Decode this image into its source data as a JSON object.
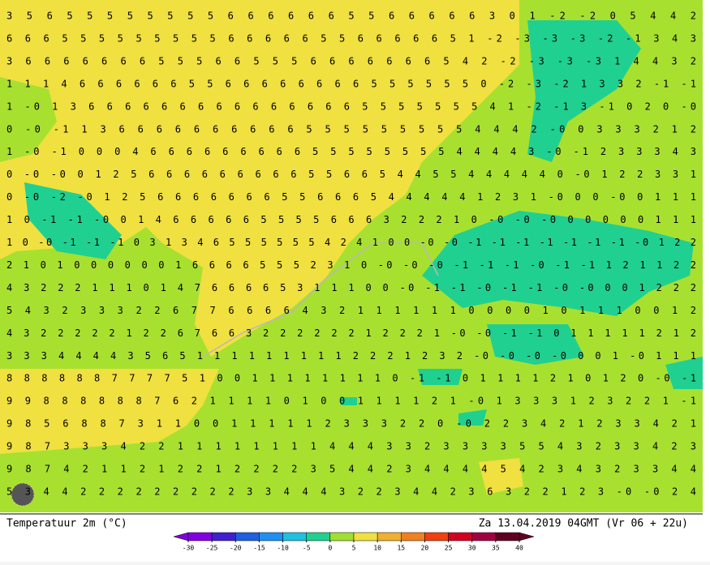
{
  "map": {
    "rows": [
      "3 5 6 5 5 5 5 5 5 5 5 6 6 6 6 6 6 5 5 6 6 6 6 6 3 0 1 -2 -2 0 5 4 4 2",
      "6 6 6 5 5 5 5 5 5 5 5 5 6 6 6 6 6 5 5 6 6 6 6 6 5 1 -2 -3 -3 -3 -2 -1 3 4 3",
      "3 6 6 6 6 6 6 6 5 5 5 6 6 5 5 5 6 6 6 6 6 6 6 5 4 2 -2 -3 -3 -3 1 4 4 3 2",
      "1 1 1 4 6 6 6 6 6 6 5 5 6 6 6 6 6 6 6 6 5 5 5 5 5 5 0 -2 -3 -2 1 3 3 2 -1 -1",
      "1 -0 1 3 6 6 6 6 6 6 6 6 6 6 6 6 6 6 6 5 5 5 5 5 5 5 4 1 -2 -1 3 -1 0 2 0 -0",
      "0 -0 -1 1 3 6 6 6 6 6 6 6 6 6 6 5 5 5 5 5 5 5 5 5 4 4 4 2 -0 0 3 3 3 2 1 2",
      "1 -0 -1 0 0 0 4 6 6 6 6 6 6 6 6 6 5 5 5 5 5 5 5 5 4 4 4 4 3 -0 -1 2 3 3 3 4 3",
      "0 -0 -0 0 1 2 5 6 6 6 6 6 6 6 6 6 5 5 6 6 5 4 4 5 5 4 4 4 4 4 0 -0 1 2 2 3 3 1",
      "0 -0 -2 -0 1 2 5 6 6 6 6 6 6 6 5 5 6 6 6 5 4 4 4 4 4 1 2 3 1 -0 0 0 -0 0 1 1 1",
      "1 0 -1 -1 -0 0 1 4 6 6 6 6 6 5 5 5 5 6 6 6 3 2 2 2 1 0 -0 -0 -0 0 0 0 0 0 1 1 1",
      "1 0 -0 -1 -1 -1 0 3 1 3 4 6 5 5 5 5 5 5 4 2 4 1 0 0 -0 -0 -1 -1 -1 -1 -1 -1 -1 -0 1 2 2",
      "2 1 0 1 0 0 0 0 0 0 1 6 6 6 6 5 5 5 2 3 1 0 -0 -0 -0 -1 -1 -1 -0 -1 -1 1 2 1 1 2 2",
      "4 3 2 2 2 1 1 1 0 1 4 7 6 6 6 6 5 3 1 1 1 0 0 -0 -1 -1 -0 -1 -1 -0 -0 0 0 1 2 2 2",
      "5 4 3 2 3 3 3 2 2 6 7 7 6 6 6 6 4 3 2 1 1 1 1 1 1 0 0 0 0 1 0 1 1 1 0 0 1 2",
      "4 3 2 2 2 2 2 1 2 2 6 7 6 6 3 2 2 2 2 2 2 1 2 2 2 1 -0 -0 -1 -1 0 1 1 1 1 1 2 1 2",
      "3 3 3 4 4 4 4 3 5 6 5 1 1 1 1 1 1 1 1 1 2 2 2 1 2 3 2 -0 -0 -0 -0 0 0 1 -0 1 1 1",
      "8 8 8 8 8 8 7 7 7 7 5 1 0 0 1 1 1 1 1 1 1 1 0 -1 -1 0 1 1 1 1 2 1 0 1 2 0 -0 -1",
      "9 9 8 8 8 8 8 8 7 6 2 1 1 1 1 0 1 0 0 1 1 1 1 2 1 -0 1 3 3 3 1 2 3 2 2 1 -1",
      "9 8 5 6 8 8 7 3 1 1 0 0 1 1 1 1 1 2 3 3 3 2 2 0 -0 2 2 3 4 2 1 2 3 3 4 2 1",
      "9 8 7 3 3 3 4 2 2 1 1 1 1 1 1 1 1 4 4 4 3 3 2 3 3 3 3 5 5 4 3 2 3 3 4 2 3",
      "9 8 7 4 2 1 1 2 1 2 2 1 2 2 2 2 3 5 4 4 2 3 4 4 4 4 5 4 2 3 4 3 2 3 3 4 4",
      "5 3 4 4 2 2 2 2 2 2 2 2 2 3 3 4 4 4 3 2 2 3 4 4 2 3 6 3 2 2 1 2 3 -0 -0 2 4"
    ]
  },
  "caption": {
    "left": "Temperatuur 2m (°C)",
    "right": "Za 13.04.2019 04GMT (Vr 06 + 22u)"
  },
  "colorbar": {
    "ticks": [
      -30,
      -25,
      -20,
      -15,
      -10,
      -5,
      0,
      5,
      10,
      15,
      20,
      25,
      30,
      35,
      40
    ],
    "colors": [
      "#8000e0",
      "#4020d0",
      "#2060e0",
      "#2090f0",
      "#20c0e0",
      "#20d090",
      "#a0e030",
      "#f0e040",
      "#f0b030",
      "#f08020",
      "#f04010",
      "#d00020",
      "#a00040",
      "#600020"
    ]
  }
}
